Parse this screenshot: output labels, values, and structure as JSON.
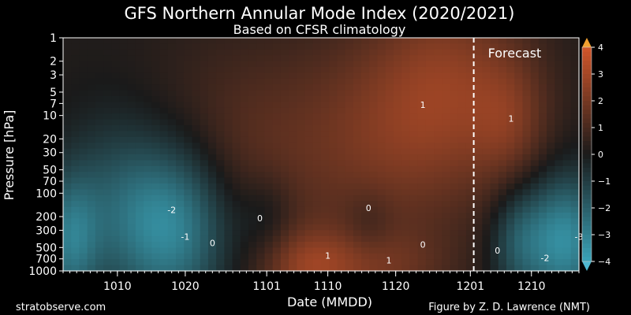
{
  "chart_data": {
    "type": "heatmap",
    "title": "GFS Northern Annular Mode Index (2020/2021)",
    "subtitle": "Based on CFSR climatology",
    "xlabel": "Date (MMDD)",
    "ylabel": "Pressure [hPa]",
    "x_ticks": [
      "1010",
      "1020",
      "1101",
      "1110",
      "1120",
      "1201",
      "1210"
    ],
    "x_tick_days": [
      9,
      19,
      31,
      40,
      50,
      61,
      70
    ],
    "x_range_days": [
      1,
      77
    ],
    "y_scale": "log",
    "y_reversed": true,
    "ylim": [
      1000,
      1
    ],
    "y_ticks": [
      1,
      2,
      3,
      5,
      7,
      10,
      20,
      30,
      50,
      70,
      100,
      200,
      300,
      500,
      700,
      1000
    ],
    "forecast_start_day": 61.5,
    "forecast_label": "Forecast",
    "colorbar": {
      "range": [
        -4,
        4
      ],
      "ticks": [
        4,
        3,
        2,
        1,
        0,
        -1,
        -2,
        -3,
        -4
      ],
      "neg_color": "#3aa3b8",
      "zero_color": "#1a1a1a",
      "pos_color": "#d2562a",
      "max_color": "#f0a030",
      "min_color": "#4fb8d0"
    },
    "contour_labels": [
      {
        "text": "-2",
        "day": 17,
        "p": 180
      },
      {
        "text": "-1",
        "day": 19,
        "p": 400
      },
      {
        "text": "0",
        "day": 23,
        "p": 480
      },
      {
        "text": "0",
        "day": 30,
        "p": 230
      },
      {
        "text": "0",
        "day": 46,
        "p": 170
      },
      {
        "text": "1",
        "day": 54,
        "p": 8
      },
      {
        "text": "0",
        "day": 54,
        "p": 500
      },
      {
        "text": "1",
        "day": 67,
        "p": 12
      },
      {
        "text": "0",
        "day": 65,
        "p": 600
      },
      {
        "text": "-2",
        "day": 72,
        "p": 750
      },
      {
        "text": "-3",
        "day": 77,
        "p": 400
      },
      {
        "text": "1",
        "day": 40,
        "p": 700
      },
      {
        "text": "1",
        "day": 49,
        "p": 800
      }
    ],
    "anomaly_centers": [
      {
        "day": 17,
        "p": 250,
        "val": -3.6,
        "sd": 6,
        "sp": 0.75
      },
      {
        "day": 2,
        "p": 400,
        "val": -2.6,
        "sd": 3,
        "sp": 0.6
      },
      {
        "day": 8,
        "p": 120,
        "val": -1.2,
        "sd": 5,
        "sp": 0.8
      },
      {
        "day": 25,
        "p": 30,
        "val": 0.9,
        "sd": 9,
        "sp": 1.0
      },
      {
        "day": 48,
        "p": 20,
        "val": 1.7,
        "sd": 12,
        "sp": 1.0
      },
      {
        "day": 58,
        "p": 3,
        "val": 1.6,
        "sd": 8,
        "sp": 0.9
      },
      {
        "day": 67,
        "p": 12,
        "val": 1.2,
        "sd": 4,
        "sp": 0.6
      },
      {
        "day": 37,
        "p": 900,
        "val": 1.9,
        "sd": 5,
        "sp": 0.35
      },
      {
        "day": 48,
        "p": 900,
        "val": 1.3,
        "sd": 7,
        "sp": 0.35
      },
      {
        "day": 31,
        "p": 200,
        "val": -0.9,
        "sd": 3,
        "sp": 0.4
      },
      {
        "day": 46,
        "p": 250,
        "val": -0.6,
        "sd": 2.5,
        "sp": 0.3
      },
      {
        "day": 75,
        "p": 400,
        "val": -3.5,
        "sd": 4,
        "sp": 0.6
      },
      {
        "day": 68,
        "p": 400,
        "val": -1.8,
        "sd": 3,
        "sp": 0.5
      }
    ]
  },
  "footer": {
    "left": "stratobserve.com",
    "right": "Figure by Z. D. Lawrence (NMT)"
  }
}
